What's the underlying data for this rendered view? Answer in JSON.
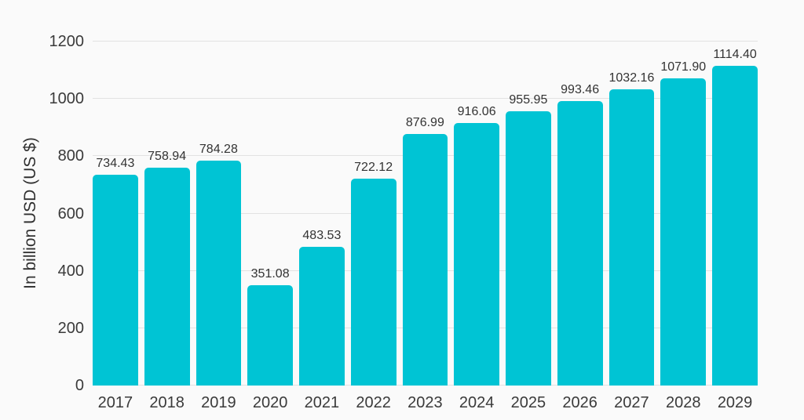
{
  "chart_data": {
    "type": "bar",
    "title": "",
    "xlabel": "",
    "ylabel": "In billion USD (US $)",
    "categories": [
      "2017",
      "2018",
      "2019",
      "2020",
      "2021",
      "2022",
      "2023",
      "2024",
      "2025",
      "2026",
      "2027",
      "2028",
      "2029"
    ],
    "values": [
      734.43,
      758.94,
      784.28,
      351.08,
      483.53,
      722.12,
      876.99,
      916.06,
      955.95,
      993.46,
      1032.16,
      1071.9,
      1114.4
    ],
    "value_labels": [
      "734.43",
      "758.94",
      "784.28",
      "351.08",
      "483.53",
      "722.12",
      "876.99",
      "916.06",
      "955.95",
      "993.46",
      "1032.16",
      "1071.90",
      "1114.40"
    ],
    "ylim": [
      0,
      1200
    ],
    "yticks": [
      0,
      200,
      400,
      600,
      800,
      1000,
      1200
    ],
    "grid": true,
    "legend": false
  },
  "colors": {
    "background": "#fafafa",
    "bar": "#00c4d4",
    "gridline": "#e2e2e2",
    "tick_text": "#3a3a3a",
    "value_text": "#333333"
  }
}
